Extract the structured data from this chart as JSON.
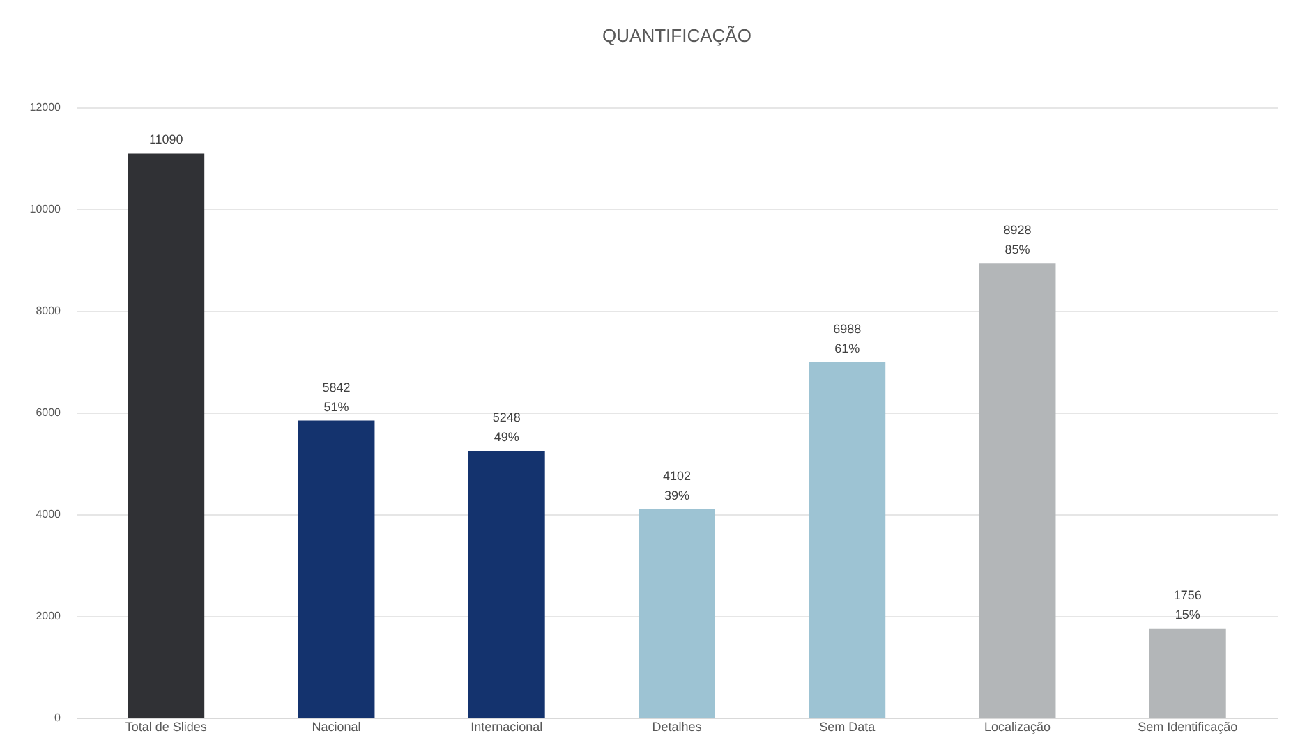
{
  "chart_data": {
    "type": "bar",
    "title": "QUANTIFICAÇÃO",
    "categories": [
      "Total de Slides",
      "Nacional",
      "Internacional",
      "Detalhes",
      "Sem Data",
      "Localização",
      "Sem Identificação"
    ],
    "values": [
      11090,
      5842,
      5248,
      4102,
      6988,
      8928,
      1756
    ],
    "colors": [
      "#303135",
      "#14336e",
      "#14336e",
      "#9dc3d3",
      "#9dc3d3",
      "#b3b6b8",
      "#b3b6b8"
    ],
    "value_labels": [
      "11090",
      "5842\n51%",
      "5248\n49%",
      "4102\n39%",
      "6988\n61%",
      "8928\n85%",
      "1756\n15%"
    ],
    "ylim": [
      0,
      12000
    ],
    "yticks": [
      0,
      2000,
      4000,
      6000,
      8000,
      10000,
      12000
    ],
    "grid": "y"
  }
}
